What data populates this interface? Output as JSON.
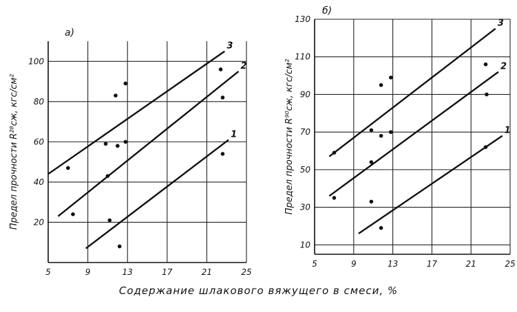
{
  "shared_xlabel": "Содержание шлакового вяжущего в смеси, %",
  "chart_data": [
    {
      "type": "scatter",
      "panel_label": "а)",
      "ylabel": "Предел прочности R²⁸сж, кгс/см²",
      "xlabel": "",
      "xticks": [
        5,
        9,
        13,
        17,
        21,
        25
      ],
      "yticks": [
        20,
        40,
        60,
        80,
        100
      ],
      "xlim": [
        5,
        25
      ],
      "ylim": [
        0,
        110
      ],
      "grid": true,
      "points": [
        {
          "x": 7,
          "y": 47
        },
        {
          "x": 7.5,
          "y": 24
        },
        {
          "x": 10.8,
          "y": 59
        },
        {
          "x": 11,
          "y": 43
        },
        {
          "x": 11.2,
          "y": 21
        },
        {
          "x": 11.8,
          "y": 83
        },
        {
          "x": 12,
          "y": 58
        },
        {
          "x": 12.2,
          "y": 8
        },
        {
          "x": 12.8,
          "y": 89
        },
        {
          "x": 12.8,
          "y": 60
        },
        {
          "x": 22.4,
          "y": 96
        },
        {
          "x": 22.6,
          "y": 82
        },
        {
          "x": 22.6,
          "y": 54
        }
      ],
      "series": [
        {
          "name": "1",
          "x": [
            8.8,
            23.2
          ],
          "y": [
            7,
            61
          ]
        },
        {
          "name": "2",
          "x": [
            6.0,
            24.2
          ],
          "y": [
            23,
            95
          ]
        },
        {
          "name": "3",
          "x": [
            5.0,
            22.8
          ],
          "y": [
            44,
            105
          ]
        }
      ]
    },
    {
      "type": "scatter",
      "panel_label": "б)",
      "ylabel": "Предел прочности R⁹⁰сж, кгс/см²",
      "xlabel": "",
      "xticks": [
        5,
        9,
        13,
        17,
        21,
        25
      ],
      "yticks": [
        10,
        30,
        50,
        70,
        90,
        110,
        130
      ],
      "xlim": [
        5,
        25
      ],
      "ylim": [
        5,
        130
      ],
      "grid": true,
      "points": [
        {
          "x": 7,
          "y": 59
        },
        {
          "x": 7,
          "y": 35
        },
        {
          "x": 10.8,
          "y": 71
        },
        {
          "x": 10.8,
          "y": 54
        },
        {
          "x": 10.8,
          "y": 33
        },
        {
          "x": 11.8,
          "y": 95
        },
        {
          "x": 11.8,
          "y": 68
        },
        {
          "x": 11.8,
          "y": 19
        },
        {
          "x": 12.8,
          "y": 99
        },
        {
          "x": 12.8,
          "y": 70
        },
        {
          "x": 22.5,
          "y": 106
        },
        {
          "x": 22.6,
          "y": 90
        },
        {
          "x": 22.5,
          "y": 62
        }
      ],
      "series": [
        {
          "name": "1",
          "x": [
            9.5,
            24.2
          ],
          "y": [
            16,
            68
          ]
        },
        {
          "name": "2",
          "x": [
            6.5,
            23.8
          ],
          "y": [
            36,
            102
          ]
        },
        {
          "name": "3",
          "x": [
            6.5,
            23.5
          ],
          "y": [
            57,
            125
          ]
        }
      ]
    }
  ]
}
